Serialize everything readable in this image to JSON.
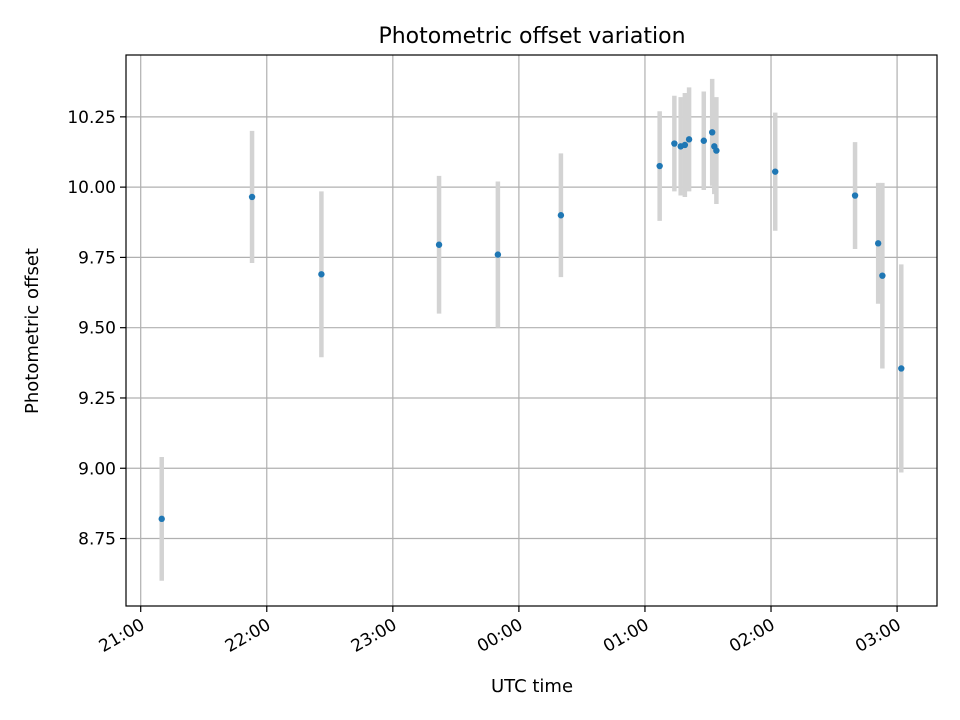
{
  "chart_data": {
    "type": "scatter",
    "title": "Photometric offset variation",
    "xlabel": "UTC time",
    "ylabel": "Photometric offset",
    "x_ticks": [
      "21:00",
      "22:00",
      "23:00",
      "00:00",
      "01:00",
      "02:00",
      "03:00"
    ],
    "y_ticks": [
      "8.75",
      "9.00",
      "9.25",
      "9.50",
      "9.75",
      "10.00",
      "10.25"
    ],
    "y_tick_values": [
      8.75,
      9.0,
      9.25,
      9.5,
      9.75,
      10.0,
      10.25
    ],
    "xlim": [
      "20:53",
      "03:19"
    ],
    "ylim": [
      8.51,
      10.47
    ],
    "grid": true,
    "colors": {
      "point": "#1f77b4",
      "errorbar": "#d3d3d3"
    },
    "series": [
      {
        "points": [
          {
            "x": "21:10",
            "y": 8.82,
            "err": 0.22
          },
          {
            "x": "21:53",
            "y": 9.965,
            "err": 0.235
          },
          {
            "x": "22:26",
            "y": 9.69,
            "err": 0.295
          },
          {
            "x": "23:22",
            "y": 9.795,
            "err": 0.245
          },
          {
            "x": "23:50",
            "y": 9.76,
            "err": 0.26
          },
          {
            "x": "00:20",
            "y": 9.9,
            "err": 0.22
          },
          {
            "x": "01:07",
            "y": 10.075,
            "err": 0.195
          },
          {
            "x": "01:14",
            "y": 10.155,
            "err": 0.17
          },
          {
            "x": "01:17",
            "y": 10.145,
            "err": 0.175
          },
          {
            "x": "01:19",
            "y": 10.15,
            "err": 0.185
          },
          {
            "x": "01:21",
            "y": 10.17,
            "err": 0.185
          },
          {
            "x": "01:28",
            "y": 10.165,
            "err": 0.175
          },
          {
            "x": "01:32",
            "y": 10.195,
            "err": 0.19
          },
          {
            "x": "01:33",
            "y": 10.145,
            "err": 0.17
          },
          {
            "x": "01:34",
            "y": 10.13,
            "err": 0.19
          },
          {
            "x": "02:02",
            "y": 10.055,
            "err": 0.21
          },
          {
            "x": "02:40",
            "y": 9.97,
            "err": 0.19
          },
          {
            "x": "02:51",
            "y": 9.8,
            "err": 0.215
          },
          {
            "x": "02:53",
            "y": 9.685,
            "err": 0.33
          },
          {
            "x": "03:02",
            "y": 9.355,
            "err": 0.37
          }
        ]
      }
    ]
  }
}
